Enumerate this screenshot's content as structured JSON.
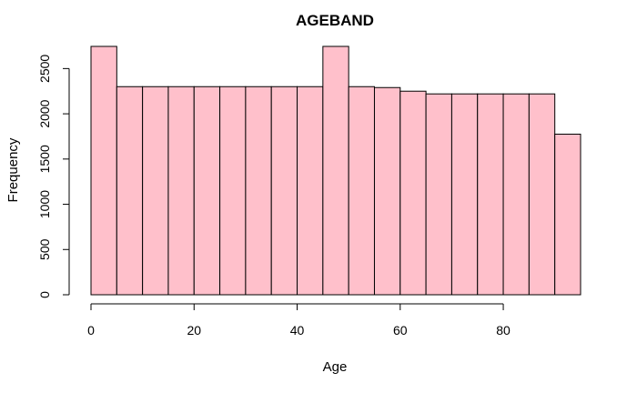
{
  "chart_data": {
    "type": "bar",
    "title": "AGEBAND",
    "xlabel": "Age",
    "ylabel": "Frequency",
    "bin_edges": [
      0,
      5,
      10,
      15,
      20,
      25,
      30,
      35,
      40,
      45,
      50,
      55,
      60,
      65,
      70,
      75,
      80,
      85,
      90,
      95
    ],
    "values": [
      2745,
      2300,
      2300,
      2300,
      2300,
      2300,
      2300,
      2300,
      2300,
      2745,
      2300,
      2290,
      2250,
      2220,
      2220,
      2220,
      2220,
      2220,
      1775
    ],
    "xlim": [
      0,
      95
    ],
    "ylim": [
      0,
      2745
    ],
    "x_ticks": [
      0,
      20,
      40,
      60,
      80
    ],
    "y_ticks": [
      0,
      500,
      1000,
      1500,
      2000,
      2500
    ],
    "grid": false,
    "colors": {
      "bar_fill": "#FFC0CB",
      "bar_stroke": "#000000",
      "axis": "#000000"
    }
  }
}
